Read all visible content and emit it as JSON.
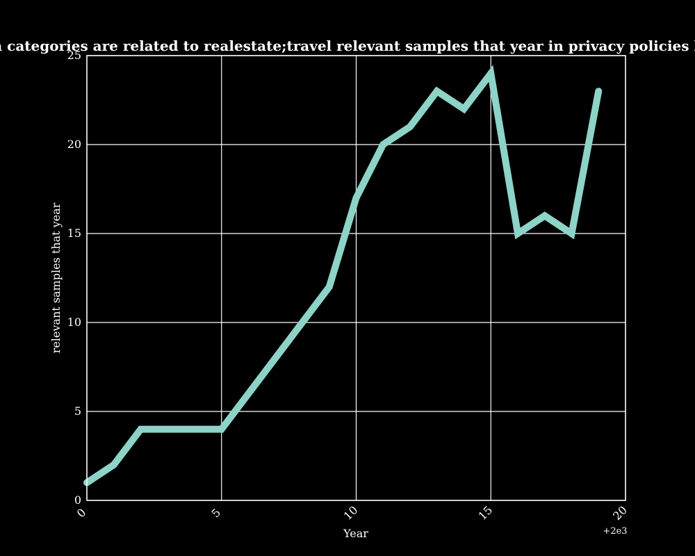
{
  "chart_data": {
    "type": "line",
    "title": "when categories are related to realestate;travel relevant samples that year in privacy policies by Year",
    "xlabel": "Year",
    "ylabel": "relevant samples that year",
    "x_offset_label": "+2e3",
    "xlim": [
      0,
      20
    ],
    "ylim": [
      0,
      25
    ],
    "x_ticks": [
      "0",
      "5",
      "10",
      "15",
      "20"
    ],
    "y_ticks": [
      "0",
      "5",
      "10",
      "15",
      "20",
      "25"
    ],
    "grid": true,
    "background": "#000000",
    "foreground": "#ffffff",
    "series": [
      {
        "color": "#8dd3c7",
        "x": [
          0,
          1,
          2,
          3,
          4,
          5,
          6,
          7,
          8,
          9,
          10,
          11,
          12,
          13,
          14,
          15,
          16,
          17,
          18,
          19
        ],
        "values": [
          1,
          2,
          4,
          4,
          4,
          4,
          6,
          8,
          10,
          12,
          17,
          20,
          21,
          23,
          22,
          24,
          15,
          16,
          15,
          23
        ]
      }
    ]
  }
}
